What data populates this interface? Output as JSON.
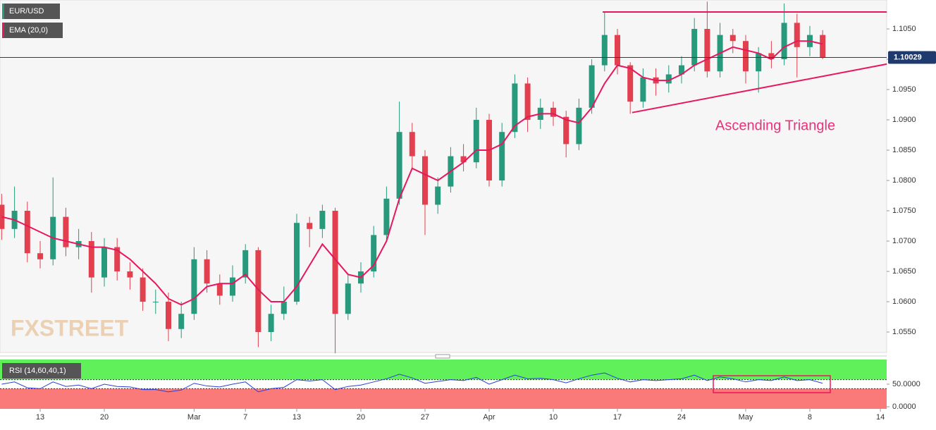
{
  "chart_data": [
    {
      "type": "candlestick",
      "symbol": "EUR/USD",
      "watermark": "FXSTREET",
      "x": [
        -3,
        -2,
        -1,
        0,
        1,
        2,
        3,
        4,
        5,
        6,
        7,
        8,
        9,
        10,
        11,
        12,
        13,
        14,
        15,
        16,
        17,
        18,
        19,
        20,
        21,
        22,
        23,
        24,
        25,
        26,
        27,
        28,
        29,
        30,
        31,
        32,
        33,
        34,
        35,
        36,
        37,
        38,
        39,
        40,
        41,
        42,
        43,
        44,
        45,
        46,
        47,
        48,
        49,
        50,
        51,
        52,
        53,
        54,
        55,
        56,
        57,
        58,
        59,
        60,
        61
      ],
      "open": [
        1.076,
        1.072,
        1.075,
        1.068,
        1.067,
        1.074,
        1.069,
        1.07,
        1.064,
        1.069,
        1.065,
        1.064,
        1.06,
        1.06,
        1.0555,
        1.058,
        1.067,
        1.063,
        1.061,
        1.064,
        1.0685,
        1.055,
        1.058,
        1.06,
        1.073,
        1.072,
        1.075,
        1.058,
        1.063,
        1.065,
        1.071,
        1.077,
        1.088,
        1.084,
        1.076,
        1.079,
        1.084,
        1.083,
        1.09,
        1.08,
        1.088,
        1.096,
        1.09,
        1.092,
        1.0905,
        1.086,
        1.092,
        1.099,
        1.104,
        1.099,
        1.093,
        1.097,
        1.096,
        1.0975,
        1.099,
        1.105,
        1.098,
        1.104,
        1.103,
        1.098,
        1.101,
        1.1,
        1.106,
        1.102,
        1.104
      ],
      "high": [
        1.0778,
        1.079,
        1.0765,
        1.07,
        1.0805,
        1.0755,
        1.072,
        1.0715,
        1.0705,
        1.0705,
        1.0665,
        1.0655,
        1.062,
        1.0615,
        1.06,
        1.069,
        1.0685,
        1.0645,
        1.066,
        1.0695,
        1.069,
        1.0595,
        1.0625,
        1.0745,
        1.074,
        1.076,
        1.0755,
        1.0645,
        1.0665,
        1.0725,
        1.079,
        1.093,
        1.0895,
        1.085,
        1.0805,
        1.0855,
        1.086,
        1.092,
        1.091,
        1.0895,
        1.0975,
        1.097,
        1.0935,
        1.093,
        1.0915,
        1.0935,
        1.1,
        1.1078,
        1.105,
        1.0995,
        1.0985,
        1.0985,
        1.099,
        1.1005,
        1.1068,
        1.1095,
        1.106,
        1.105,
        1.104,
        1.102,
        1.103,
        1.1092,
        1.1075,
        1.1055,
        1.1048
      ],
      "low": [
        1.0702,
        1.0705,
        1.0665,
        1.0655,
        1.066,
        1.0675,
        1.067,
        1.0615,
        1.0625,
        1.0635,
        1.062,
        1.0585,
        1.058,
        1.0535,
        1.054,
        1.057,
        1.0615,
        1.0595,
        1.06,
        1.063,
        1.0525,
        1.0535,
        1.057,
        1.0595,
        1.069,
        1.0705,
        1.0515,
        1.057,
        1.0615,
        1.064,
        1.07,
        1.076,
        1.082,
        1.071,
        1.0745,
        1.078,
        1.0815,
        1.082,
        1.079,
        1.079,
        1.087,
        1.088,
        1.0885,
        1.089,
        1.0838,
        1.085,
        1.091,
        1.098,
        1.0975,
        1.091,
        1.092,
        1.094,
        1.0945,
        1.096,
        1.098,
        1.097,
        1.097,
        1.101,
        1.096,
        1.0945,
        1.0985,
        1.099,
        1.097,
        1.1005,
        1.1
      ],
      "close": [
        1.072,
        1.075,
        1.068,
        1.067,
        1.074,
        1.069,
        1.07,
        1.064,
        1.069,
        1.065,
        1.064,
        1.06,
        1.06,
        1.0555,
        1.058,
        1.067,
        1.063,
        1.061,
        1.064,
        1.0685,
        1.055,
        1.058,
        1.06,
        1.073,
        1.072,
        1.075,
        1.058,
        1.063,
        1.065,
        1.071,
        1.077,
        1.088,
        1.084,
        1.076,
        1.079,
        1.084,
        1.083,
        1.09,
        1.08,
        1.088,
        1.096,
        1.09,
        1.092,
        1.0905,
        1.086,
        1.092,
        1.099,
        1.104,
        1.099,
        1.093,
        1.097,
        1.096,
        1.0975,
        1.099,
        1.105,
        1.098,
        1.104,
        1.103,
        1.098,
        1.101,
        1.1,
        1.106,
        1.102,
        1.104,
        1.1003
      ],
      "up_color": "#27997c",
      "down_color": "#e2404e",
      "series": [
        {
          "name": "EMA (20,0)",
          "color": "#e8175d",
          "values": [
            1.074,
            1.0735,
            1.0725,
            1.0715,
            1.0705,
            1.07,
            1.0695,
            1.069,
            1.069,
            1.0685,
            1.067,
            1.065,
            1.063,
            1.0605,
            1.0595,
            1.0605,
            1.0625,
            1.063,
            1.063,
            1.0645,
            1.062,
            1.06,
            1.06,
            1.0625,
            1.066,
            1.0695,
            1.067,
            1.0645,
            1.064,
            1.066,
            1.07,
            1.077,
            1.082,
            1.081,
            1.08,
            1.0815,
            1.083,
            1.085,
            1.085,
            1.086,
            1.089,
            1.0905,
            1.091,
            1.091,
            1.09,
            1.0895,
            1.092,
            1.096,
            1.099,
            1.0985,
            1.097,
            1.0965,
            1.0965,
            1.0975,
            1.099,
            1.1,
            1.101,
            1.102,
            1.1015,
            1.101,
            1.1,
            1.102,
            1.103,
            1.103,
            1.1025
          ]
        }
      ],
      "last_price": 1.10029,
      "lines": [
        {
          "color": "#e8175d",
          "x": [
            43.85,
            66
          ],
          "y": [
            1.1078,
            1.1078
          ]
        },
        {
          "color": "#e8175d",
          "x": [
            46.15,
            66
          ],
          "y": [
            1.0912,
            1.0992
          ]
        }
      ],
      "annotation": "Ascending Triangle",
      "xlim": [
        -3.132,
        65.99
      ],
      "ylim": [
        1.05163,
        1.10977
      ],
      "yticks": [
        {
          "value": 1.055,
          "label": "1.0550"
        },
        {
          "value": 1.06,
          "label": "1.0600"
        },
        {
          "value": 1.065,
          "label": "1.0650"
        },
        {
          "value": 1.07,
          "label": "1.0700"
        },
        {
          "value": 1.075,
          "label": "1.0750"
        },
        {
          "value": 1.08,
          "label": "1.0800"
        },
        {
          "value": 1.085,
          "label": "1.0850"
        },
        {
          "value": 1.09,
          "label": "1.0900"
        },
        {
          "value": 1.095,
          "label": "1.0950"
        },
        {
          "value": 1.1,
          "label": "1.1000"
        },
        {
          "value": 1.105,
          "label": "1.1050"
        }
      ]
    },
    {
      "type": "line",
      "x": [
        -3,
        -2,
        -1,
        0,
        1,
        2,
        3,
        4,
        5,
        6,
        7,
        8,
        9,
        10,
        11,
        12,
        13,
        14,
        15,
        16,
        17,
        18,
        19,
        20,
        21,
        22,
        23,
        24,
        25,
        26,
        27,
        28,
        29,
        30,
        31,
        32,
        33,
        34,
        35,
        36,
        37,
        38,
        39,
        40,
        41,
        42,
        43,
        44,
        45,
        46,
        47,
        48,
        49,
        50,
        51,
        52,
        53,
        54,
        55,
        56,
        57,
        58,
        59,
        60,
        61
      ],
      "series": [
        {
          "name": "RSI (14,60,40,1)",
          "color": "#2a3fd6",
          "values": [
            50,
            55,
            42,
            40,
            55,
            45,
            48,
            40,
            50,
            45,
            44,
            38,
            38,
            33,
            37,
            52,
            46,
            44,
            50,
            55,
            33,
            40,
            43,
            60,
            57,
            60,
            38,
            45,
            48,
            55,
            62,
            72,
            64,
            52,
            56,
            60,
            58,
            65,
            50,
            60,
            70,
            62,
            63,
            60,
            53,
            62,
            70,
            75,
            63,
            55,
            60,
            58,
            60,
            62,
            70,
            58,
            66,
            62,
            55,
            60,
            58,
            66,
            58,
            60,
            52
          ]
        }
      ],
      "upper_band": 60,
      "lower_band": 40,
      "xlim": [
        -3.132,
        65.99
      ],
      "ylim": [
        -4.7,
        104.7
      ],
      "yticks": [
        {
          "value": 50,
          "label": "50.0000"
        },
        {
          "value": 0,
          "label": "0.0000"
        }
      ],
      "xticks": [
        {
          "value": 0,
          "label": "13"
        },
        {
          "value": 5,
          "label": "20"
        },
        {
          "value": 12,
          "label": "Mar"
        },
        {
          "value": 16,
          "label": "7"
        },
        {
          "value": 20,
          "label": "13"
        },
        {
          "value": 25,
          "label": "20"
        },
        {
          "value": 30,
          "label": "27"
        },
        {
          "value": 35,
          "label": "Apr"
        },
        {
          "value": 40,
          "label": "10"
        },
        {
          "value": 45,
          "label": "17"
        },
        {
          "value": 50,
          "label": "24"
        },
        {
          "value": 55,
          "label": "May"
        },
        {
          "value": 60,
          "label": "8"
        },
        {
          "value": 65.5,
          "label": "14"
        }
      ]
    }
  ]
}
